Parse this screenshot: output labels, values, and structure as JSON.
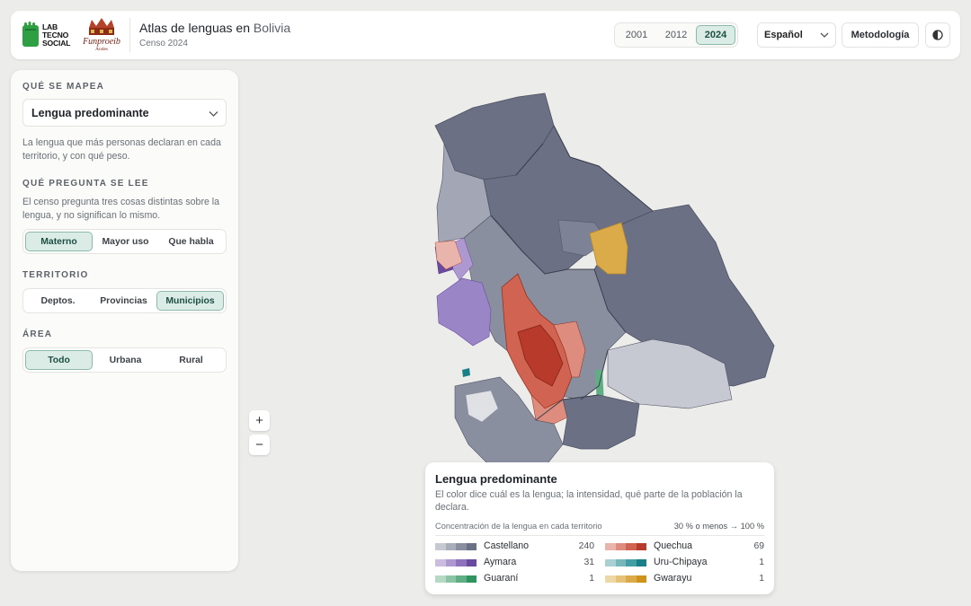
{
  "header": {
    "logo_lab": [
      "LAB",
      "TECNO",
      "SOCIAL"
    ],
    "logo_fun_name": "Funproeib",
    "logo_fun_sub": "Andes",
    "title_main": "Atlas de lenguas en",
    "title_place": "Bolivia",
    "subtitle": "Censo 2024",
    "years": [
      "2001",
      "2012",
      "2024"
    ],
    "active_year": "2024",
    "language_select": "Español",
    "methodology_label": "Metodología",
    "theme_icon": "contrast-icon"
  },
  "sidebar": {
    "mapea": {
      "label": "QUÉ SE MAPEA",
      "selected": "Lengua predominante",
      "description": "La lengua que más personas declaran en cada territorio, y con qué peso."
    },
    "pregunta": {
      "label": "QUÉ PREGUNTA SE LEE",
      "description": "El censo pregunta tres cosas distintas sobre la lengua, y no significan lo mismo.",
      "options": [
        "Materno",
        "Mayor uso",
        "Que habla"
      ],
      "active": "Materno"
    },
    "territorio": {
      "label": "TERRITORIO",
      "options": [
        "Deptos.",
        "Provincias",
        "Municipios"
      ],
      "active": "Municipios"
    },
    "area": {
      "label": "ÁREA",
      "options": [
        "Todo",
        "Urbana",
        "Rural"
      ],
      "active": "Todo"
    }
  },
  "map_controls": {
    "zoom_in": "+",
    "zoom_out": "−"
  },
  "legend": {
    "title": "Lengua predominante",
    "description": "El color dice cuál es la lengua; la intensidad, qué parte de la población la declara.",
    "scale_label": "Concentración de la lengua en cada territorio",
    "scale_range": "30 % o menos → 100 %",
    "items": [
      {
        "name": "Castellano",
        "count": "240",
        "colors": [
          "#c6c9d1",
          "#a9adba",
          "#8a8fa0",
          "#6b7085"
        ]
      },
      {
        "name": "Quechua",
        "count": "69",
        "colors": [
          "#e8b4ab",
          "#dd8c7e",
          "#d06352",
          "#b83a2a"
        ]
      },
      {
        "name": "Aymara",
        "count": "31",
        "colors": [
          "#c9bcdf",
          "#ad98cf",
          "#8e72bc",
          "#6a4a9e"
        ]
      },
      {
        "name": "Uru-Chipaya",
        "count": "1",
        "colors": [
          "#a9d0d2",
          "#78b8bb",
          "#459ea3",
          "#1a8088"
        ]
      },
      {
        "name": "Guaraní",
        "count": "1",
        "colors": [
          "#b5d9c4",
          "#8bc4a4",
          "#5faf84",
          "#2f9460"
        ]
      },
      {
        "name": "Gwarayu",
        "count": "1",
        "colors": [
          "#eed7a6",
          "#e6c279",
          "#dcab49",
          "#cf921b"
        ]
      }
    ]
  },
  "colors": {
    "accent_active_bg": "#dbece6",
    "accent_active_border": "#8db9ab",
    "map_castellano_dark": "#6b7085",
    "map_quechua": "#d06352",
    "map_aymara": "#9a86c6",
    "map_gwarayu": "#dcab49",
    "map_guarani": "#5faf84"
  }
}
